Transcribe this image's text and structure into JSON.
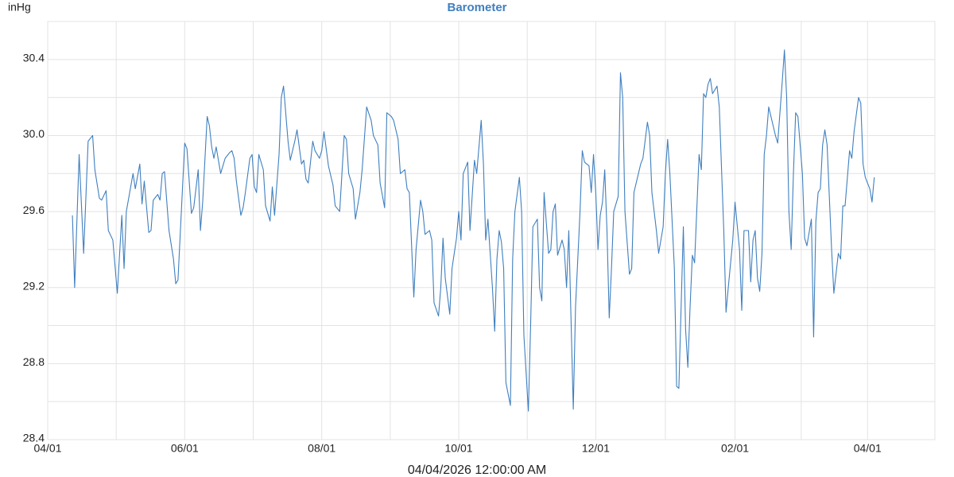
{
  "chart_data": {
    "type": "line",
    "title": "Barometer",
    "y_unit": "inHg",
    "xlabel": "04/04/2026 12:00:00 AM",
    "color": "#3f7fbf",
    "title_color": "#3f7fbf",
    "grid": true,
    "minor_grid": true,
    "xlim": [
      0,
      395
    ],
    "ylim": [
      28.4,
      30.6
    ],
    "xticks": [
      {
        "value": 0,
        "label": "04/01"
      },
      {
        "value": 61,
        "label": "06/01"
      },
      {
        "value": 122,
        "label": "08/01"
      },
      {
        "value": 183,
        "label": "10/01"
      },
      {
        "value": 244,
        "label": "12/01"
      },
      {
        "value": 306,
        "label": "02/01"
      },
      {
        "value": 365,
        "label": "04/01"
      }
    ],
    "yticks": [
      28.4,
      28.8,
      29.2,
      29.6,
      {
        "value": 30,
        "label": "30.0"
      },
      30.4
    ],
    "x": [
      11,
      12,
      14,
      16,
      18,
      20,
      21,
      23,
      24,
      26,
      27,
      29,
      31,
      33,
      34,
      35,
      38,
      39,
      41,
      42,
      43,
      45,
      46,
      47,
      49,
      50,
      51,
      52,
      54,
      56,
      57,
      58,
      61,
      62,
      64,
      65,
      67,
      68,
      69,
      71,
      72,
      73,
      74,
      75,
      77,
      78,
      79,
      81,
      82,
      83,
      84,
      86,
      87,
      88,
      90,
      91,
      92,
      93,
      94,
      96,
      97,
      99,
      100,
      101,
      103,
      104,
      105,
      107,
      108,
      110,
      111,
      113,
      114,
      115,
      116,
      118,
      119,
      121,
      122,
      123,
      125,
      127,
      128,
      130,
      132,
      133,
      134,
      136,
      137,
      139,
      140,
      142,
      144,
      145,
      147,
      148,
      150,
      151,
      153,
      154,
      156,
      157,
      159,
      160,
      161,
      163,
      164,
      166,
      167,
      168,
      170,
      171,
      172,
      174,
      175,
      176,
      177,
      179,
      180,
      182,
      183,
      184,
      185,
      187,
      188,
      190,
      191,
      193,
      194,
      195,
      196,
      198,
      199,
      200,
      201,
      202,
      203,
      204,
      206,
      207,
      208,
      210,
      211,
      212,
      214,
      215,
      216,
      218,
      219,
      220,
      221,
      223,
      224,
      225,
      226,
      227,
      229,
      230,
      231,
      232,
      234,
      235,
      237,
      238,
      239,
      241,
      242,
      243,
      244,
      245,
      246,
      247,
      248,
      249,
      250,
      251,
      252,
      254,
      255,
      256,
      257,
      259,
      260,
      261,
      262,
      264,
      265,
      267,
      268,
      269,
      271,
      272,
      274,
      275,
      276,
      277,
      279,
      280,
      281,
      283,
      284,
      285,
      286,
      287,
      288,
      290,
      291,
      292,
      293,
      294,
      295,
      296,
      298,
      299,
      301,
      302,
      303,
      305,
      306,
      308,
      309,
      310,
      312,
      313,
      314,
      315,
      316,
      317,
      318,
      319,
      320,
      321,
      323,
      324,
      325,
      327,
      328,
      329,
      330,
      331,
      332,
      333,
      334,
      336,
      337,
      338,
      340,
      341,
      342,
      343,
      344,
      345,
      346,
      347,
      349,
      350,
      352,
      353,
      354,
      355,
      357,
      358,
      359,
      361,
      362,
      363,
      364,
      366,
      367,
      368
    ],
    "values": [
      29.58,
      29.2,
      29.9,
      29.38,
      29.97,
      30.0,
      29.82,
      29.67,
      29.66,
      29.71,
      29.5,
      29.45,
      29.17,
      29.58,
      29.3,
      29.6,
      29.8,
      29.72,
      29.85,
      29.64,
      29.76,
      29.49,
      29.5,
      29.66,
      29.69,
      29.66,
      29.8,
      29.81,
      29.5,
      29.35,
      29.22,
      29.24,
      29.96,
      29.93,
      29.59,
      29.62,
      29.82,
      29.5,
      29.65,
      30.1,
      30.05,
      29.94,
      29.88,
      29.94,
      29.8,
      29.84,
      29.88,
      29.91,
      29.92,
      29.88,
      29.76,
      29.58,
      29.62,
      29.7,
      29.88,
      29.9,
      29.73,
      29.7,
      29.9,
      29.82,
      29.63,
      29.55,
      29.73,
      29.58,
      29.9,
      30.2,
      30.26,
      29.97,
      29.87,
      29.97,
      30.03,
      29.85,
      29.87,
      29.77,
      29.75,
      29.97,
      29.92,
      29.88,
      29.92,
      30.02,
      29.84,
      29.74,
      29.63,
      29.6,
      30.0,
      29.98,
      29.8,
      29.72,
      29.56,
      29.7,
      29.82,
      30.15,
      30.08,
      30.0,
      29.95,
      29.75,
      29.62,
      30.12,
      30.1,
      30.08,
      29.98,
      29.8,
      29.82,
      29.72,
      29.7,
      29.15,
      29.4,
      29.66,
      29.6,
      29.48,
      29.5,
      29.45,
      29.12,
      29.05,
      29.2,
      29.46,
      29.25,
      29.06,
      29.3,
      29.46,
      29.6,
      29.45,
      29.8,
      29.86,
      29.5,
      29.87,
      29.8,
      30.08,
      29.85,
      29.45,
      29.56,
      29.2,
      28.97,
      29.35,
      29.5,
      29.44,
      29.3,
      28.7,
      28.58,
      29.35,
      29.6,
      29.78,
      29.6,
      28.95,
      28.55,
      29.0,
      29.52,
      29.56,
      29.2,
      29.13,
      29.7,
      29.38,
      29.4,
      29.6,
      29.64,
      29.37,
      29.45,
      29.4,
      29.2,
      29.5,
      28.56,
      29.1,
      29.6,
      29.92,
      29.86,
      29.84,
      29.7,
      29.9,
      29.7,
      29.4,
      29.58,
      29.65,
      29.82,
      29.5,
      29.04,
      29.3,
      29.6,
      29.68,
      30.33,
      30.2,
      29.6,
      29.27,
      29.3,
      29.7,
      29.75,
      29.85,
      29.88,
      30.07,
      30.0,
      29.7,
      29.5,
      29.38,
      29.52,
      29.8,
      29.98,
      29.8,
      29.3,
      28.68,
      28.67,
      29.52,
      28.98,
      28.78,
      29.1,
      29.37,
      29.33,
      29.9,
      29.82,
      30.22,
      30.2,
      30.27,
      30.3,
      30.22,
      30.26,
      30.15,
      29.5,
      29.07,
      29.2,
      29.45,
      29.65,
      29.4,
      29.08,
      29.5,
      29.5,
      29.23,
      29.45,
      29.5,
      29.25,
      29.18,
      29.38,
      29.9,
      30.0,
      30.15,
      30.05,
      30.0,
      29.96,
      30.28,
      30.45,
      30.2,
      29.6,
      29.4,
      29.8,
      30.12,
      30.1,
      29.8,
      29.46,
      29.42,
      29.56,
      28.94,
      29.55,
      29.7,
      29.72,
      29.95,
      30.03,
      29.95,
      29.4,
      29.17,
      29.38,
      29.35,
      29.63,
      29.63,
      29.92,
      29.88,
      30.02,
      30.2,
      30.17,
      29.85,
      29.78,
      29.72,
      29.65,
      29.78
    ]
  }
}
